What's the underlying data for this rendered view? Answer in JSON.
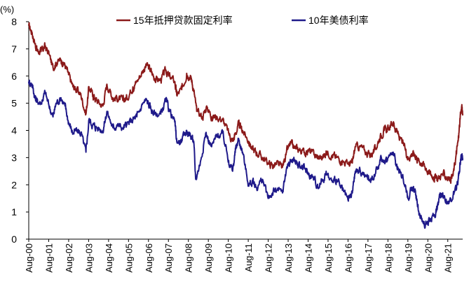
{
  "chart_data": {
    "type": "line",
    "unit_label": "(%)",
    "ylim": [
      0,
      8
    ],
    "y_ticks": [
      "0",
      "1",
      "2",
      "3",
      "4",
      "5",
      "6",
      "7",
      "8"
    ],
    "x_ticks": [
      "Aug-00",
      "Aug-01",
      "Aug-02",
      "Aug-03",
      "Aug-04",
      "Aug-05",
      "Aug-06",
      "Aug-07",
      "Aug-08",
      "Aug-09",
      "Aug-10",
      "Aug-11",
      "Aug-12",
      "Aug-13",
      "Aug-14",
      "Aug-15",
      "Aug-16",
      "Aug-17",
      "Aug-18",
      "Aug-19",
      "Aug-20",
      "Aug-21"
    ],
    "x_range": [
      2000.583,
      2022.33
    ],
    "grid": false,
    "legend_position": "top",
    "series": [
      {
        "name": "15年抵押贷款固定利率",
        "color": "#8B1A1A",
        "points": [
          [
            2000.58,
            7.85
          ],
          [
            2000.75,
            7.6
          ],
          [
            2000.9,
            7.2
          ],
          [
            2001.0,
            6.95
          ],
          [
            2001.2,
            6.9
          ],
          [
            2001.4,
            7.1
          ],
          [
            2001.6,
            6.8
          ],
          [
            2001.8,
            6.3
          ],
          [
            2001.95,
            6.5
          ],
          [
            2002.2,
            6.6
          ],
          [
            2002.4,
            6.4
          ],
          [
            2002.58,
            6.05
          ],
          [
            2002.8,
            5.6
          ],
          [
            2003.0,
            5.5
          ],
          [
            2003.2,
            5.3
          ],
          [
            2003.45,
            4.6
          ],
          [
            2003.6,
            5.6
          ],
          [
            2003.8,
            5.3
          ],
          [
            2004.0,
            5.1
          ],
          [
            2004.3,
            4.9
          ],
          [
            2004.5,
            5.7
          ],
          [
            2004.8,
            5.2
          ],
          [
            2005.0,
            5.2
          ],
          [
            2005.3,
            5.1
          ],
          [
            2005.5,
            5.2
          ],
          [
            2005.8,
            5.6
          ],
          [
            2006.0,
            5.8
          ],
          [
            2006.3,
            6.2
          ],
          [
            2006.5,
            6.4
          ],
          [
            2006.7,
            6.2
          ],
          [
            2006.9,
            5.9
          ],
          [
            2007.2,
            5.85
          ],
          [
            2007.45,
            6.2
          ],
          [
            2007.6,
            6.0
          ],
          [
            2007.9,
            5.8
          ],
          [
            2008.0,
            5.3
          ],
          [
            2008.25,
            5.5
          ],
          [
            2008.5,
            6.1
          ],
          [
            2008.7,
            6.0
          ],
          [
            2008.85,
            5.5
          ],
          [
            2009.0,
            4.7
          ],
          [
            2009.3,
            4.5
          ],
          [
            2009.5,
            4.9
          ],
          [
            2009.75,
            4.5
          ],
          [
            2010.0,
            4.5
          ],
          [
            2010.3,
            4.4
          ],
          [
            2010.6,
            3.9
          ],
          [
            2010.8,
            3.6
          ],
          [
            2010.9,
            3.8
          ],
          [
            2011.1,
            4.2
          ],
          [
            2011.3,
            4.0
          ],
          [
            2011.6,
            3.6
          ],
          [
            2011.8,
            3.3
          ],
          [
            2012.0,
            3.2
          ],
          [
            2012.3,
            3.0
          ],
          [
            2012.58,
            2.8
          ],
          [
            2012.8,
            2.7
          ],
          [
            2013.0,
            2.75
          ],
          [
            2013.3,
            2.65
          ],
          [
            2013.5,
            3.2
          ],
          [
            2013.7,
            3.5
          ],
          [
            2013.9,
            3.35
          ],
          [
            2014.1,
            3.3
          ],
          [
            2014.4,
            3.2
          ],
          [
            2014.6,
            3.25
          ],
          [
            2014.9,
            3.1
          ],
          [
            2015.1,
            3.0
          ],
          [
            2015.3,
            3.0
          ],
          [
            2015.5,
            3.2
          ],
          [
            2015.8,
            3.1
          ],
          [
            2016.0,
            3.0
          ],
          [
            2016.3,
            2.9
          ],
          [
            2016.6,
            2.75
          ],
          [
            2016.8,
            2.8
          ],
          [
            2016.95,
            3.4
          ],
          [
            2017.2,
            3.4
          ],
          [
            2017.5,
            3.2
          ],
          [
            2017.7,
            3.1
          ],
          [
            2017.95,
            3.3
          ],
          [
            2018.2,
            3.8
          ],
          [
            2018.4,
            4.0
          ],
          [
            2018.6,
            4.05
          ],
          [
            2018.85,
            4.3
          ],
          [
            2019.0,
            4.0
          ],
          [
            2019.2,
            3.7
          ],
          [
            2019.45,
            3.3
          ],
          [
            2019.6,
            3.0
          ],
          [
            2019.8,
            3.15
          ],
          [
            2019.95,
            3.1
          ],
          [
            2020.1,
            2.9
          ],
          [
            2020.3,
            2.8
          ],
          [
            2020.5,
            2.6
          ],
          [
            2020.7,
            2.4
          ],
          [
            2020.9,
            2.3
          ],
          [
            2021.05,
            2.2
          ],
          [
            2021.3,
            2.4
          ],
          [
            2021.5,
            2.3
          ],
          [
            2021.7,
            2.2
          ],
          [
            2021.85,
            2.35
          ],
          [
            2022.0,
            3.1
          ],
          [
            2022.1,
            3.6
          ],
          [
            2022.2,
            4.4
          ],
          [
            2022.28,
            4.9
          ],
          [
            2022.33,
            4.55
          ]
        ]
      },
      {
        "name": "10年美债利率",
        "color": "#1F1A8A",
        "points": [
          [
            2000.58,
            5.8
          ],
          [
            2000.75,
            5.7
          ],
          [
            2000.9,
            5.2
          ],
          [
            2001.0,
            5.1
          ],
          [
            2001.2,
            5.0
          ],
          [
            2001.4,
            5.4
          ],
          [
            2001.6,
            4.9
          ],
          [
            2001.8,
            4.5
          ],
          [
            2001.95,
            5.0
          ],
          [
            2002.2,
            5.2
          ],
          [
            2002.4,
            4.9
          ],
          [
            2002.58,
            4.3
          ],
          [
            2002.8,
            3.9
          ],
          [
            2003.0,
            4.0
          ],
          [
            2003.2,
            3.9
          ],
          [
            2003.45,
            3.2
          ],
          [
            2003.6,
            4.4
          ],
          [
            2003.8,
            4.2
          ],
          [
            2004.0,
            4.1
          ],
          [
            2004.3,
            4.0
          ],
          [
            2004.5,
            4.7
          ],
          [
            2004.8,
            4.1
          ],
          [
            2005.0,
            4.2
          ],
          [
            2005.3,
            4.1
          ],
          [
            2005.5,
            4.2
          ],
          [
            2005.8,
            4.4
          ],
          [
            2006.0,
            4.5
          ],
          [
            2006.3,
            5.0
          ],
          [
            2006.5,
            5.1
          ],
          [
            2006.7,
            4.8
          ],
          [
            2006.9,
            4.6
          ],
          [
            2007.2,
            4.6
          ],
          [
            2007.45,
            5.1
          ],
          [
            2007.6,
            4.8
          ],
          [
            2007.9,
            4.3
          ],
          [
            2008.0,
            3.6
          ],
          [
            2008.25,
            3.6
          ],
          [
            2008.5,
            4.0
          ],
          [
            2008.7,
            3.8
          ],
          [
            2008.85,
            3.6
          ],
          [
            2008.95,
            2.2
          ],
          [
            2009.2,
            2.9
          ],
          [
            2009.45,
            3.9
          ],
          [
            2009.75,
            3.4
          ],
          [
            2010.0,
            3.8
          ],
          [
            2010.3,
            3.9
          ],
          [
            2010.6,
            2.9
          ],
          [
            2010.8,
            2.5
          ],
          [
            2010.95,
            3.3
          ],
          [
            2011.1,
            3.7
          ],
          [
            2011.3,
            3.2
          ],
          [
            2011.6,
            2.0
          ],
          [
            2011.8,
            2.1
          ],
          [
            2012.0,
            1.9
          ],
          [
            2012.3,
            2.2
          ],
          [
            2012.58,
            1.5
          ],
          [
            2012.8,
            1.7
          ],
          [
            2013.0,
            1.8
          ],
          [
            2013.3,
            1.7
          ],
          [
            2013.5,
            2.6
          ],
          [
            2013.7,
            2.9
          ],
          [
            2013.9,
            2.9
          ],
          [
            2014.1,
            2.7
          ],
          [
            2014.4,
            2.6
          ],
          [
            2014.6,
            2.4
          ],
          [
            2014.9,
            2.2
          ],
          [
            2015.1,
            1.9
          ],
          [
            2015.3,
            2.2
          ],
          [
            2015.5,
            2.4
          ],
          [
            2015.8,
            2.1
          ],
          [
            2016.0,
            2.2
          ],
          [
            2016.3,
            1.8
          ],
          [
            2016.6,
            1.4
          ],
          [
            2016.8,
            1.7
          ],
          [
            2016.95,
            2.5
          ],
          [
            2017.2,
            2.5
          ],
          [
            2017.5,
            2.3
          ],
          [
            2017.7,
            2.2
          ],
          [
            2017.95,
            2.4
          ],
          [
            2018.2,
            2.9
          ],
          [
            2018.4,
            2.9
          ],
          [
            2018.6,
            3.0
          ],
          [
            2018.85,
            3.2
          ],
          [
            2019.0,
            2.7
          ],
          [
            2019.2,
            2.5
          ],
          [
            2019.45,
            2.0
          ],
          [
            2019.6,
            1.5
          ],
          [
            2019.8,
            1.9
          ],
          [
            2019.95,
            1.8
          ],
          [
            2020.1,
            1.1
          ],
          [
            2020.3,
            0.65
          ],
          [
            2020.5,
            0.55
          ],
          [
            2020.7,
            0.7
          ],
          [
            2020.9,
            0.9
          ],
          [
            2021.05,
            1.1
          ],
          [
            2021.2,
            1.7
          ],
          [
            2021.4,
            1.6
          ],
          [
            2021.6,
            1.3
          ],
          [
            2021.85,
            1.6
          ],
          [
            2022.0,
            1.8
          ],
          [
            2022.1,
            2.2
          ],
          [
            2022.2,
            2.8
          ],
          [
            2022.28,
            3.1
          ],
          [
            2022.33,
            2.9
          ]
        ]
      }
    ]
  }
}
